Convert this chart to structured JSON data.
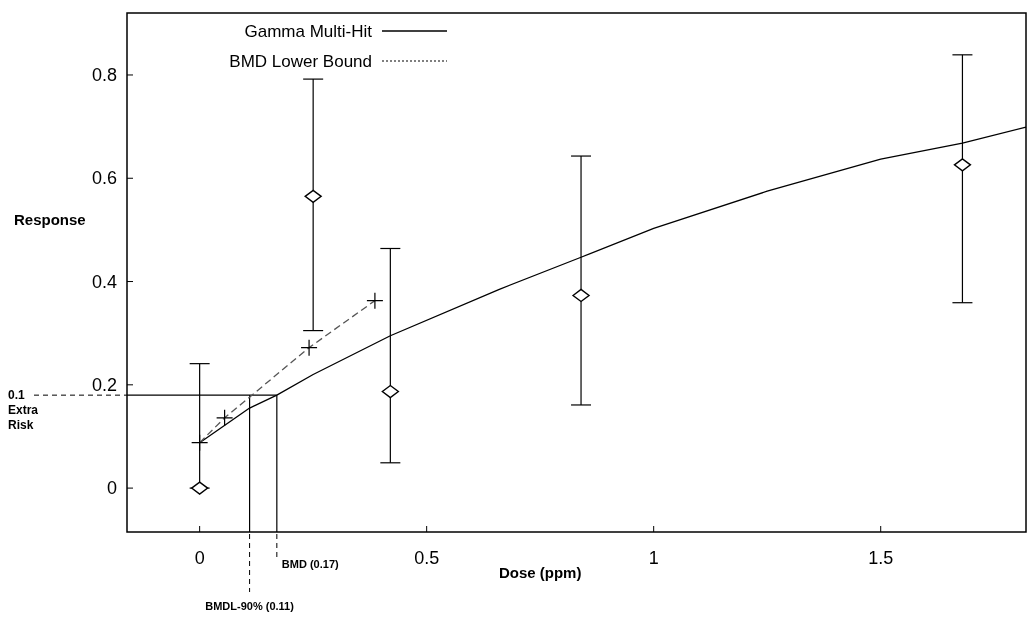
{
  "chart_data": {
    "type": "scatter",
    "xlabel": "Dose (ppm)",
    "ylabel": "Response",
    "xlim": [
      -0.16,
      1.82
    ],
    "ylim": [
      -0.085,
      0.92
    ],
    "xticks": [
      0,
      0.5,
      1,
      1.5
    ],
    "yticks": [
      0,
      0.2,
      0.4,
      0.6,
      0.8
    ],
    "legend": "top left",
    "grid": false,
    "series": [
      {
        "color": "#000000",
        "marker": "diamond",
        "x": [
          0,
          0.25,
          0.42,
          0.84,
          1.68
        ],
        "values": [
          0,
          0.565,
          0.187,
          0.373,
          0.626
        ],
        "errors": [
          [
            0,
            0.241
          ],
          [
            0.305,
            0.792
          ],
          [
            0.049,
            0.464
          ],
          [
            0.161,
            0.643
          ],
          [
            0.359,
            0.839
          ]
        ]
      },
      {
        "type": "line",
        "name": "Gamma Multi-Hit",
        "color": "#000000",
        "line_style": "solid",
        "marker": "none",
        "x": [
          0,
          0.11,
          0.17,
          0.25,
          0.42,
          0.66,
          0.84,
          1.0,
          1.25,
          1.5,
          1.68,
          1.82
        ],
        "values": [
          0.088,
          0.155,
          0.18,
          0.22,
          0.295,
          0.385,
          0.447,
          0.503,
          0.575,
          0.637,
          0.668,
          0.699
        ]
      },
      {
        "type": "line",
        "name": "BMD Lower Bound",
        "color": "#555555",
        "line_style": "dashed",
        "marker": "cross",
        "x": [
          0,
          0.055,
          0.241,
          0.386
        ],
        "values": [
          0.088,
          0.136,
          0.272,
          0.363
        ]
      }
    ],
    "ref_lines": [
      {
        "axis": "y",
        "value": 0.18,
        "label": "0.1 Extra Risk"
      },
      {
        "axis": "x",
        "value": 0.17,
        "label": "BMD (0.17)"
      },
      {
        "axis": "x",
        "value": 0.11,
        "label": "BMDL-90% (0.11)"
      }
    ]
  }
}
